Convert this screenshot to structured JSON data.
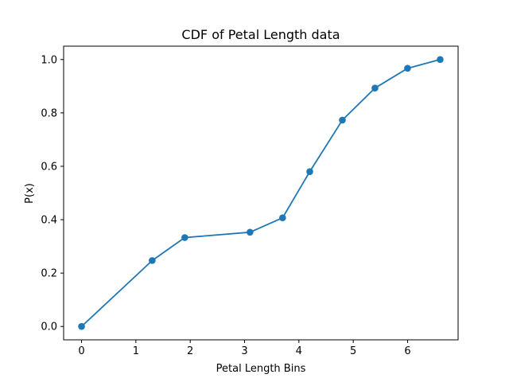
{
  "chart_data": {
    "type": "line",
    "title": "CDF of Petal Length data",
    "xlabel": "Petal Length Bins",
    "ylabel": "P(x)",
    "xlim": [
      -0.33,
      6.93
    ],
    "ylim": [
      -0.05,
      1.05
    ],
    "xticks": [
      0,
      1,
      2,
      3,
      4,
      5,
      6
    ],
    "xtick_labels": [
      "0",
      "1",
      "2",
      "3",
      "4",
      "5",
      "6"
    ],
    "yticks": [
      0.0,
      0.2,
      0.4,
      0.6,
      0.8,
      1.0
    ],
    "ytick_labels": [
      "0.0",
      "0.2",
      "0.4",
      "0.6",
      "0.8",
      "1.0"
    ],
    "grid": false,
    "series": [
      {
        "color": "#1f77b4",
        "marker": "circle",
        "x": [
          0,
          1.3,
          1.9,
          3.1,
          3.7,
          4.2,
          4.8,
          5.4,
          6.0,
          6.6
        ],
        "y": [
          0.0,
          0.247,
          0.333,
          0.353,
          0.407,
          0.58,
          0.773,
          0.893,
          0.967,
          1.0
        ]
      }
    ]
  }
}
